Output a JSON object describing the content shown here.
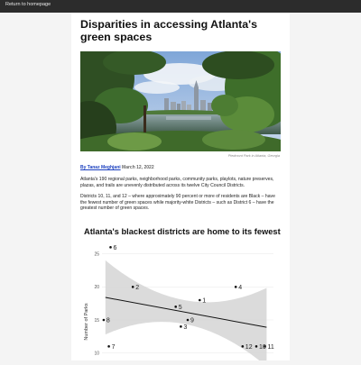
{
  "nav": {
    "home_link": "Return to homepage"
  },
  "article": {
    "title": "Disparities in accessing Atlanta's green spaces",
    "image_caption": "Piedmont Park in Atlanta, Georgia",
    "author": "By Tanaz Meghjani",
    "date": "March 12, 2022",
    "paragraphs": [
      "Atlanta's 190 regional parks, neighborhood parks, community parks, playlots, nature preserves, plazas, and trails are unevenly distributed across its twelve City Council Districts.",
      "Districts 10, 11, and 12 – where approximately 90 percent or more of residents are Black – have the fewest number of green spaces while majority-white Districts – such as District 6 – have the greatest number of green spaces."
    ]
  },
  "chart_data": {
    "type": "scatter",
    "title": "Atlanta's blackest districts are home to its fewest parks",
    "ylabel": "Number of Parks",
    "xlabel": "",
    "yticks": [
      10,
      15,
      20,
      25
    ],
    "ylim": [
      9,
      27
    ],
    "xlim": [
      0,
      1
    ],
    "points": [
      {
        "label": "6",
        "x": 0.05,
        "y": 26
      },
      {
        "label": "2",
        "x": 0.18,
        "y": 20
      },
      {
        "label": "8",
        "x": 0.01,
        "y": 15
      },
      {
        "label": "7",
        "x": 0.04,
        "y": 11
      },
      {
        "label": "5",
        "x": 0.43,
        "y": 17
      },
      {
        "label": "1",
        "x": 0.57,
        "y": 18
      },
      {
        "label": "3",
        "x": 0.46,
        "y": 14
      },
      {
        "label": "9",
        "x": 0.5,
        "y": 15
      },
      {
        "label": "4",
        "x": 0.78,
        "y": 20
      },
      {
        "label": "12",
        "x": 0.82,
        "y": 11
      },
      {
        "label": "10",
        "x": 0.9,
        "y": 11
      },
      {
        "label": "11",
        "x": 0.95,
        "y": 11
      }
    ],
    "trend": {
      "y_start": 18.5,
      "y_end": 13.7
    },
    "colors": {
      "band": "#d5d5d5",
      "line": "#111111",
      "point": "#111111"
    }
  }
}
